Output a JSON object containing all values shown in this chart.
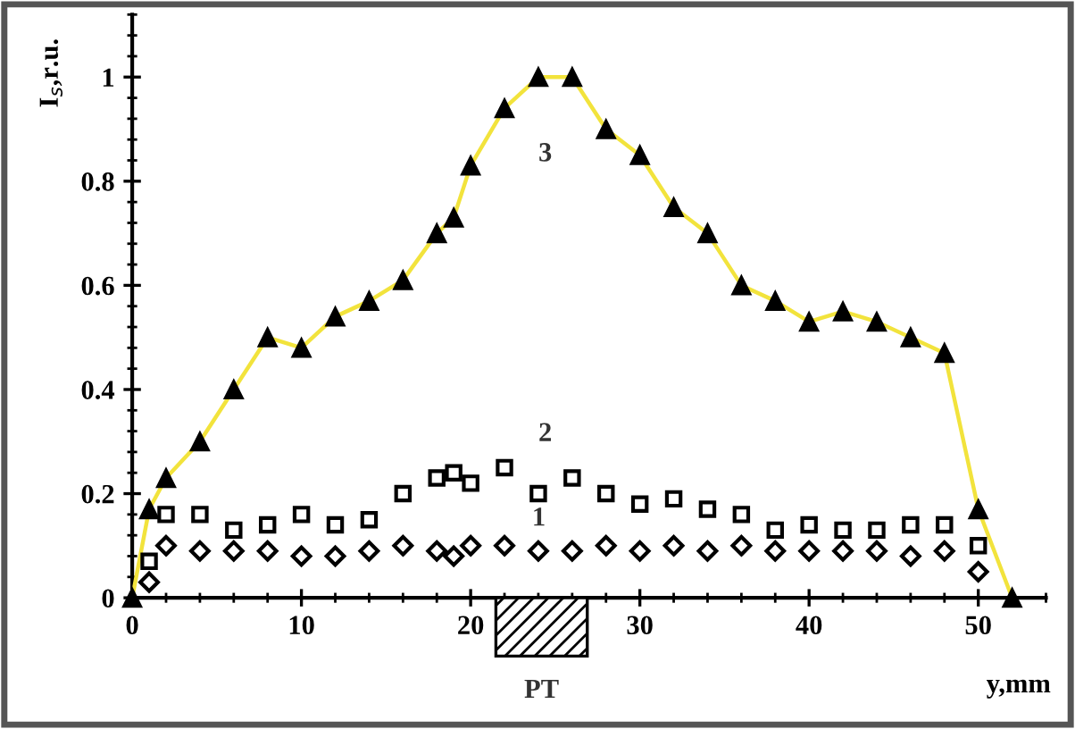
{
  "chart_data": {
    "type": "line",
    "xlabel": "y,mm",
    "ylabel": "I$_{s}$,r.u.",
    "xlim": [
      0,
      54
    ],
    "xticks": [
      0,
      10,
      20,
      30,
      40,
      50
    ],
    "ylim": [
      0,
      1.12
    ],
    "yticks": [
      0,
      0.2,
      0.4,
      0.6,
      0.8,
      1
    ],
    "grid": false,
    "series": [
      {
        "type": "scatter",
        "marker": "diamond",
        "color": "#000000",
        "x": [
          1,
          2,
          4,
          6,
          8,
          10,
          12,
          14,
          16,
          18,
          19,
          20,
          22,
          24,
          26,
          28,
          30,
          32,
          34,
          36,
          38,
          40,
          42,
          44,
          46,
          48,
          50
        ],
        "values": [
          0.03,
          0.1,
          0.09,
          0.09,
          0.09,
          0.08,
          0.08,
          0.09,
          0.1,
          0.09,
          0.08,
          0.1,
          0.1,
          0.09,
          0.09,
          0.1,
          0.09,
          0.1,
          0.09,
          0.1,
          0.09,
          0.09,
          0.09,
          0.09,
          0.08,
          0.09,
          0.05
        ]
      },
      {
        "type": "scatter",
        "marker": "square",
        "color": "#000000",
        "x": [
          1,
          2,
          4,
          6,
          8,
          10,
          12,
          14,
          16,
          18,
          19,
          20,
          22,
          24,
          26,
          28,
          30,
          32,
          34,
          36,
          38,
          40,
          42,
          44,
          46,
          48,
          50
        ],
        "values": [
          0.07,
          0.16,
          0.16,
          0.13,
          0.14,
          0.16,
          0.14,
          0.15,
          0.2,
          0.23,
          0.24,
          0.22,
          0.25,
          0.2,
          0.23,
          0.2,
          0.18,
          0.19,
          0.17,
          0.16,
          0.13,
          0.14,
          0.13,
          0.13,
          0.14,
          0.14,
          0.1
        ]
      },
      {
        "marker": "triangle",
        "color": "#f2e33c",
        "x": [
          0,
          1,
          2,
          4,
          6,
          8,
          10,
          12,
          14,
          16,
          18,
          19,
          20,
          22,
          24,
          26,
          28,
          30,
          32,
          34,
          36,
          38,
          40,
          42,
          44,
          46,
          48,
          50,
          52
        ],
        "values": [
          0,
          0.17,
          0.23,
          0.3,
          0.4,
          0.5,
          0.48,
          0.54,
          0.57,
          0.61,
          0.7,
          0.73,
          0.83,
          0.94,
          1.0,
          1.0,
          0.9,
          0.85,
          0.75,
          0.7,
          0.6,
          0.57,
          0.53,
          0.55,
          0.53,
          0.5,
          0.47,
          0.17,
          0
        ]
      }
    ],
    "annotations": [
      "3",
      "2",
      "1",
      "PT"
    ]
  }
}
